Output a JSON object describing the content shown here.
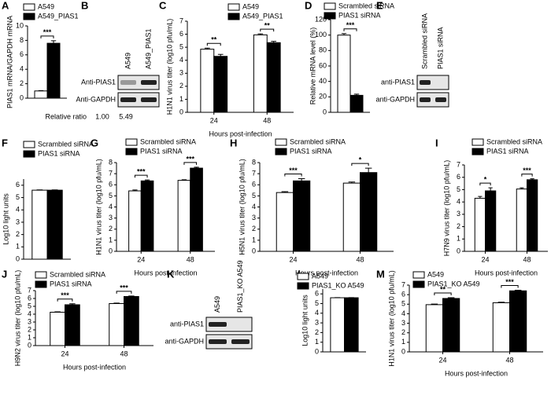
{
  "chart_data": [
    {
      "type": "bar",
      "label": "A",
      "ylabel": "PIAS1 mRNA/GAPDH mRNA",
      "categories": [
        null
      ],
      "series": [
        {
          "name": "A549",
          "color": "#ffffff",
          "values": [
            1.0
          ],
          "errors": [
            0.05
          ]
        },
        {
          "name": "A549_PIAS1",
          "color": "#000000",
          "values": [
            7.6
          ],
          "errors": [
            0.35
          ]
        }
      ],
      "significance": [
        "***"
      ],
      "ylim": [
        0,
        10
      ],
      "yticks": [
        0,
        2,
        4,
        6,
        8,
        10
      ]
    },
    {
      "type": "blot",
      "label": "B",
      "lanes": [
        "A549",
        "A549_PIAS1"
      ],
      "rows": [
        "Anti-PIAS1",
        "Anti-GAPDH"
      ],
      "ratio_label": "Relative ratio",
      "values": [
        1.0,
        5.49
      ],
      "value_labels": [
        "1.00",
        "5.49"
      ]
    },
    {
      "type": "bar",
      "label": "C",
      "ylabel": "H1N1 virus titer (log10 pfu/mL)",
      "xlabel": "Hours post-infection",
      "categories": [
        "24",
        "48"
      ],
      "series": [
        {
          "name": "A549",
          "color": "#ffffff",
          "values": [
            4.85,
            5.95
          ],
          "errors": [
            0.08,
            0.08
          ]
        },
        {
          "name": "A549_PIAS1",
          "color": "#000000",
          "values": [
            4.3,
            5.35
          ],
          "errors": [
            0.15,
            0.1
          ]
        }
      ],
      "significance": [
        "**",
        "**"
      ],
      "ylim": [
        0,
        7
      ],
      "yticks": [
        0,
        1,
        2,
        3,
        4,
        5,
        6,
        7
      ]
    },
    {
      "type": "bar",
      "label": "D",
      "ylabel": "Relative mRNA level (%)",
      "categories": [
        null
      ],
      "series": [
        {
          "name": "Scrambled siRNA",
          "color": "#ffffff",
          "values": [
            100
          ],
          "errors": [
            2
          ]
        },
        {
          "name": "PIAS1 siRNA",
          "color": "#000000",
          "values": [
            22
          ],
          "errors": [
            1.5
          ]
        }
      ],
      "significance": [
        "***"
      ],
      "ylim": [
        0,
        120
      ],
      "yticks": [
        0,
        20,
        40,
        60,
        80,
        100,
        120
      ]
    },
    {
      "type": "blot",
      "label": "E",
      "lanes": [
        "Scrambled siRNA",
        "PIAS1 siRNA"
      ],
      "rows": [
        "anti-PIAS1",
        "anti-GAPDH"
      ]
    },
    {
      "type": "bar",
      "label": "F",
      "ylabel": "Log10 light units",
      "categories": [
        null
      ],
      "series": [
        {
          "name": "Scrambled siRNA",
          "color": "#ffffff",
          "values": [
            5.6
          ],
          "errors": [
            0.02
          ]
        },
        {
          "name": "PIAS1 siRNA",
          "color": "#000000",
          "values": [
            5.6
          ],
          "errors": [
            0.02
          ]
        }
      ],
      "ylim": [
        0,
        6.5
      ],
      "yticks": [
        0,
        1,
        2,
        3,
        4,
        5,
        6
      ]
    },
    {
      "type": "bar",
      "label": "G",
      "ylabel": "H1N1 virus titer (log10 pfu/mL)",
      "xlabel": "Hours post-infection",
      "categories": [
        "24",
        "48"
      ],
      "series": [
        {
          "name": "Scrambled siRNA",
          "color": "#ffffff",
          "values": [
            5.45,
            6.4
          ],
          "errors": [
            0.08,
            0.05
          ]
        },
        {
          "name": "PIAS1 siRNA",
          "color": "#000000",
          "values": [
            6.35,
            7.5
          ],
          "errors": [
            0.08,
            0.08
          ]
        }
      ],
      "significance": [
        "***",
        "***"
      ],
      "ylim": [
        0,
        8
      ],
      "yticks": [
        0,
        1,
        2,
        3,
        4,
        5,
        6,
        7,
        8
      ]
    },
    {
      "type": "bar",
      "label": "H",
      "ylabel": "H5N1 virus titer (log10 pfu/mL)",
      "xlabel": "Hours post-infection",
      "categories": [
        "24",
        "48"
      ],
      "series": [
        {
          "name": "Scrambled siRNA",
          "color": "#ffffff",
          "values": [
            5.3,
            6.15
          ],
          "errors": [
            0.08,
            0.1
          ]
        },
        {
          "name": "PIAS1 siRNA",
          "color": "#000000",
          "values": [
            6.35,
            7.1
          ],
          "errors": [
            0.2,
            0.4
          ]
        }
      ],
      "significance": [
        "***",
        "*"
      ],
      "ylim": [
        0,
        8
      ],
      "yticks": [
        0,
        1,
        2,
        3,
        4,
        5,
        6,
        7,
        8
      ]
    },
    {
      "type": "bar",
      "label": "I",
      "ylabel": "H7N9 virus titer (log10 pfu/mL)",
      "xlabel": "Hours post-infection",
      "categories": [
        "24",
        "48"
      ],
      "series": [
        {
          "name": "Scrambled siRNA",
          "color": "#ffffff",
          "values": [
            4.3,
            5.05
          ],
          "errors": [
            0.15,
            0.1
          ]
        },
        {
          "name": "PIAS1 siRNA",
          "color": "#000000",
          "values": [
            4.9,
            5.8
          ],
          "errors": [
            0.25,
            0.08
          ]
        }
      ],
      "significance": [
        "*",
        "***"
      ],
      "ylim": [
        0,
        7
      ],
      "yticks": [
        0,
        1,
        2,
        3,
        4,
        5,
        6,
        7
      ]
    },
    {
      "type": "bar",
      "label": "J",
      "ylabel": "H9N2 virus titer (log10 pfu/mL)",
      "xlabel": "Hours post-infection",
      "categories": [
        "24",
        "48"
      ],
      "series": [
        {
          "name": "Scrambled siRNA",
          "color": "#ffffff",
          "values": [
            4.25,
            5.35
          ],
          "errors": [
            0.05,
            0.06
          ]
        },
        {
          "name": "PIAS1 siRNA",
          "color": "#000000",
          "values": [
            5.2,
            6.25
          ],
          "errors": [
            0.12,
            0.06
          ]
        }
      ],
      "significance": [
        "***",
        "***"
      ],
      "ylim": [
        0,
        7
      ],
      "yticks": [
        0,
        1,
        2,
        3,
        4,
        5,
        6,
        7
      ]
    },
    {
      "type": "blot",
      "label": "K",
      "lanes": [
        "A549",
        "PIAS1_KO A549"
      ],
      "rows": [
        "anti-PIAS1",
        "anti-GAPDH"
      ]
    },
    {
      "type": "bar",
      "label": "L",
      "ylabel": "Log10 light units",
      "categories": [
        null
      ],
      "series": [
        {
          "name": "A549",
          "color": "#ffffff",
          "values": [
            5.6
          ],
          "errors": [
            0.02
          ]
        },
        {
          "name": "PIAS1_KO A549",
          "color": "#000000",
          "values": [
            5.6
          ],
          "errors": [
            0.02
          ]
        }
      ],
      "ylim": [
        0,
        6.5
      ],
      "yticks": [
        0,
        1,
        2,
        3,
        4,
        5,
        6
      ]
    },
    {
      "type": "bar",
      "label": "M",
      "ylabel": "H1N1 virus titer (log10 pfu/mL)",
      "xlabel": "Hours post-infection",
      "categories": [
        "24",
        "48"
      ],
      "series": [
        {
          "name": "A549",
          "color": "#ffffff",
          "values": [
            4.95,
            5.15
          ],
          "errors": [
            0.06,
            0.06
          ]
        },
        {
          "name": "PIAS1_KO A549",
          "color": "#000000",
          "values": [
            5.6,
            6.4
          ],
          "errors": [
            0.08,
            0.06
          ]
        }
      ],
      "significance": [
        "**",
        "***"
      ],
      "ylim": [
        0,
        7
      ],
      "yticks": [
        0,
        1,
        2,
        3,
        4,
        5,
        6,
        7
      ]
    }
  ]
}
